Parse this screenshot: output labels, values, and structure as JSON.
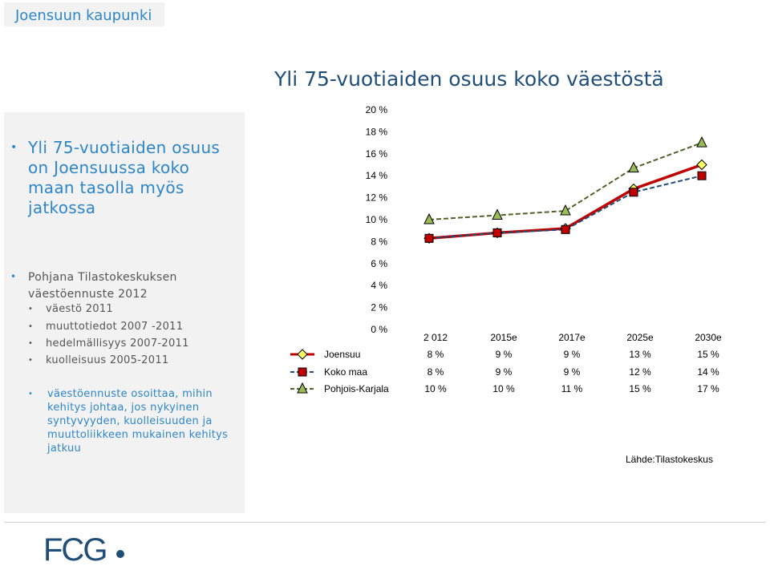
{
  "header": {
    "title": "Joensuun kaupunki"
  },
  "left_panel": {
    "main_bullet": "Yli 75-vuotiaiden osuus on Joensuussa koko maan tasolla myös jatkossa",
    "source_bullet": "Pohjana Tilastokeskuksen väestöennuste 2012",
    "items": [
      "väestö 2011",
      "muuttotiedot 2007 -2011",
      "hedelmällisyys 2007-2011",
      "kuolleisuus 2005-2011"
    ],
    "note": "väestöennuste osoittaa, mihin kehitys johtaa, jos nykyinen syntyvyyden, kuolleisuuden ja muuttoliikkeen mukainen kehitys jatkuu"
  },
  "chart_title": "Yli 75-vuotiaiden osuus koko väestöstä",
  "source_label": "Lähde:Tilastokeskus",
  "logo_text": "FCG",
  "chart_data": {
    "type": "line",
    "title": "Yli 75-vuotiaiden osuus koko väestöstä",
    "categories": [
      "2 012",
      "2015e",
      "2017e",
      "2025e",
      "2030e"
    ],
    "y_ticks": [
      "0 %",
      "2 %",
      "4 %",
      "6 %",
      "8 %",
      "10 %",
      "12 %",
      "14 %",
      "16 %",
      "18 %",
      "20 %"
    ],
    "ylim": [
      0,
      20
    ],
    "series": [
      {
        "name": "Joensuu",
        "values": [
          8.3,
          8.8,
          9.2,
          12.8,
          15.0
        ],
        "labels": [
          "8 %",
          "9 %",
          "9 %",
          "13 %",
          "15 %"
        ],
        "color": "#c00000",
        "marker": "diamond",
        "marker_fill": "#ffff66",
        "line_style": "solid"
      },
      {
        "name": "Koko maa",
        "values": [
          8.3,
          8.8,
          9.1,
          12.5,
          14.0
        ],
        "labels": [
          "8 %",
          "9 %",
          "9 %",
          "12 %",
          "14 %"
        ],
        "color": "#1f4e79",
        "marker": "square",
        "marker_fill": "#c00000",
        "line_style": "dashed"
      },
      {
        "name": "Pohjois-Karjala",
        "values": [
          10.0,
          10.4,
          10.8,
          14.7,
          17.0
        ],
        "labels": [
          "10 %",
          "10 %",
          "11 %",
          "15 %",
          "17 %"
        ],
        "color": "#4f6228",
        "marker": "triangle",
        "marker_fill": "#9bbb59",
        "line_style": "dashed"
      }
    ]
  }
}
